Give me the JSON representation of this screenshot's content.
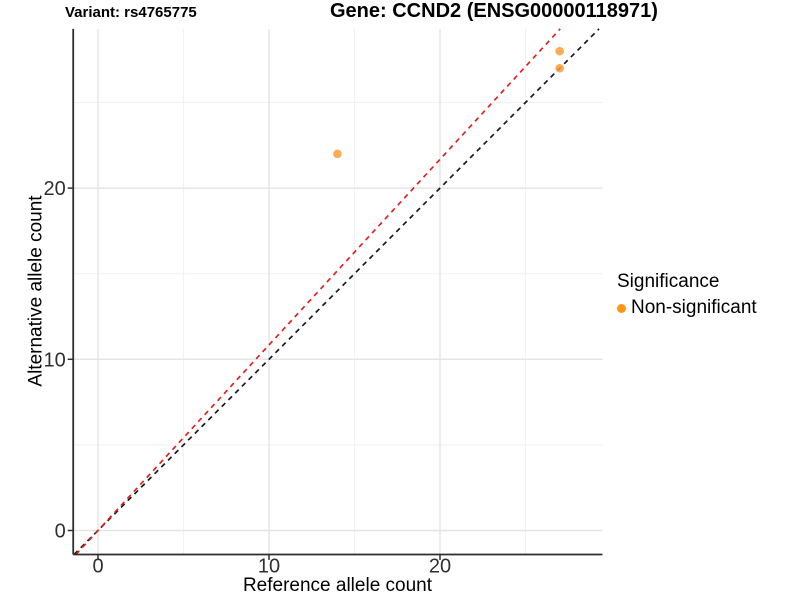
{
  "header": {
    "variant_title": "Variant: rs4765775",
    "gene_title": "Gene: CCND2 (ENSG00000118971)"
  },
  "axes": {
    "x_label": "Reference allele count",
    "y_label": "Alternative allele count",
    "x_tick_labels": [
      "0",
      "10",
      "20"
    ],
    "y_tick_labels": [
      "0",
      "10",
      "20"
    ]
  },
  "legend": {
    "title": "Significance",
    "items": [
      {
        "label": "Non-significant",
        "color": "#FF9713"
      }
    ]
  },
  "colors": {
    "point_fill": "#FB9E36",
    "identity_line": "#1A1A1A",
    "fitted_line": "#DE2222",
    "grid_major": "#E5E5E5",
    "grid_minor": "#F2F2F2",
    "axis_line": "#2E2E2E",
    "tick_text": "#303030"
  },
  "chart_data": {
    "type": "scatter",
    "title": "Variant: rs4765775 / Gene: CCND2 (ENSG00000118971)",
    "xlabel": "Reference allele count",
    "ylabel": "Alternative allele count",
    "xlim": [
      -1.45,
      29.5
    ],
    "ylim": [
      -1.4,
      29.3
    ],
    "x_ticks": [
      0,
      10,
      20
    ],
    "y_ticks": [
      0,
      10,
      20
    ],
    "x_minor_ticks": [
      5,
      15,
      25
    ],
    "y_minor_ticks": [
      5,
      15,
      25
    ],
    "grid": "on",
    "legend_position": "right-middle",
    "series": [
      {
        "name": "Non-significant",
        "color": "#FB9E36",
        "points": [
          {
            "x": 14,
            "y": 22
          },
          {
            "x": 27,
            "y": 28
          },
          {
            "x": 27,
            "y": 27
          }
        ]
      }
    ],
    "reference_lines": [
      {
        "name": "identity",
        "slope": 1.0,
        "intercept": 0,
        "style": "dashed",
        "color": "#1A1A1A"
      },
      {
        "name": "fitted",
        "slope": 1.084,
        "intercept": 0,
        "style": "dashed",
        "color": "#DE2222"
      }
    ]
  }
}
